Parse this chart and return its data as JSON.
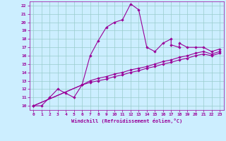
{
  "xlabel": "Windchill (Refroidissement éolien,°C)",
  "bg_color": "#cceeff",
  "grid_color": "#99cccc",
  "line_color": "#990099",
  "xlim": [
    -0.5,
    23.5
  ],
  "ylim": [
    9.5,
    22.5
  ],
  "xticks": [
    0,
    1,
    2,
    3,
    4,
    5,
    6,
    7,
    8,
    9,
    10,
    11,
    12,
    13,
    14,
    15,
    16,
    17,
    18,
    19,
    20,
    21,
    22,
    23
  ],
  "yticks": [
    10,
    11,
    12,
    13,
    14,
    15,
    16,
    17,
    18,
    19,
    20,
    21,
    22
  ],
  "line1_x": [
    0,
    1,
    2,
    3,
    4,
    5,
    6,
    7,
    8,
    9,
    10,
    11,
    12,
    13,
    14,
    15,
    16,
    17,
    17,
    18,
    18,
    19,
    20,
    21,
    22,
    23
  ],
  "line1_y": [
    10,
    10,
    11,
    12,
    11.5,
    11,
    12.5,
    16,
    17.8,
    19.4,
    20.0,
    20.3,
    22.2,
    21.5,
    17.0,
    16.5,
    17.5,
    18.0,
    17.3,
    17.0,
    17.5,
    17.0,
    17.0,
    17.0,
    16.5,
    16.8
  ],
  "line2_x": [
    0,
    6,
    7,
    8,
    9,
    10,
    11,
    12,
    13,
    14,
    15,
    16,
    17,
    18,
    19,
    20,
    21,
    22,
    23
  ],
  "line2_y": [
    10,
    12.5,
    13.0,
    13.3,
    13.5,
    13.8,
    14.0,
    14.3,
    14.5,
    14.7,
    15.0,
    15.3,
    15.5,
    15.8,
    16.0,
    16.3,
    16.5,
    16.2,
    16.5
  ],
  "line3_x": [
    0,
    6,
    7,
    8,
    9,
    10,
    11,
    12,
    13,
    14,
    15,
    16,
    17,
    18,
    19,
    20,
    21,
    22,
    23
  ],
  "line3_y": [
    10,
    12.5,
    12.8,
    13.0,
    13.2,
    13.5,
    13.7,
    14.0,
    14.2,
    14.5,
    14.7,
    15.0,
    15.2,
    15.5,
    15.7,
    16.0,
    16.2,
    16.0,
    16.3
  ]
}
